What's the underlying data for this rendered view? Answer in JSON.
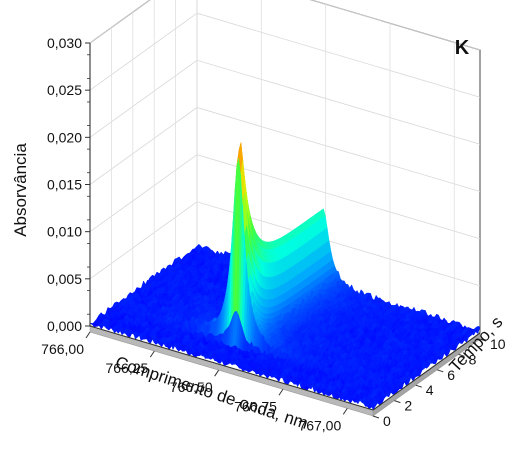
{
  "chart_data": {
    "type": "surface3d",
    "label": "K",
    "zlabel": "Absorvância",
    "xlabel": "Comprimento de onda, nm",
    "ylabel": "Tempo, s",
    "x_ticks": [
      "766,00",
      "766,25",
      "766,50",
      "766,75",
      "767,00"
    ],
    "y_ticks": [
      "0",
      "2",
      "4",
      "6",
      "8",
      "10"
    ],
    "z_ticks": [
      "0,000",
      "0,005",
      "0,010",
      "0,015",
      "0,020",
      "0,025",
      "0,030"
    ],
    "xlim": [
      766.0,
      767.1
    ],
    "ylim": [
      0,
      10
    ],
    "zlim": [
      0,
      0.03
    ],
    "peak": {
      "wavelength": 766.49,
      "time": 2.0,
      "absorbance": 0.026
    },
    "baseline_absorbance": 0.0003,
    "colormap": [
      "#0000ff",
      "#00a0ff",
      "#00ffe0",
      "#40ff40",
      "#e0ff00",
      "#ff9000",
      "#e03000"
    ]
  }
}
